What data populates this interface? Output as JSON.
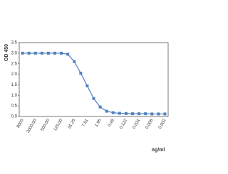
{
  "chart_data": {
    "type": "line",
    "y_label": "OD 450",
    "x_label": "ng/ml",
    "categories": [
      "8000",
      null,
      "2000.00",
      null,
      "500.00",
      null,
      "125.00",
      null,
      "31.25",
      null,
      "7.81",
      null,
      "1.95",
      null,
      "0.49",
      null,
      "0.122",
      null,
      "0.031",
      null,
      "0.008",
      null,
      "0.002"
    ],
    "values": [
      3.0,
      3.0,
      3.0,
      3.0,
      3.0,
      3.0,
      3.0,
      2.95,
      2.6,
      2.05,
      1.45,
      0.85,
      0.45,
      0.25,
      0.18,
      0.15,
      0.14,
      0.13,
      0.13,
      0.13,
      0.12,
      0.12,
      0.12
    ],
    "color": "#4f81bd",
    "ylim": [
      0,
      3.5
    ],
    "yticks": [
      {
        "value": 0,
        "label": "0.0"
      },
      0.5,
      {
        "value": 1,
        "label": "1.0"
      },
      1.5,
      {
        "value": 2,
        "label": "2.0"
      },
      2.5,
      {
        "value": 3,
        "label": "3.0"
      },
      3.5
    ]
  }
}
